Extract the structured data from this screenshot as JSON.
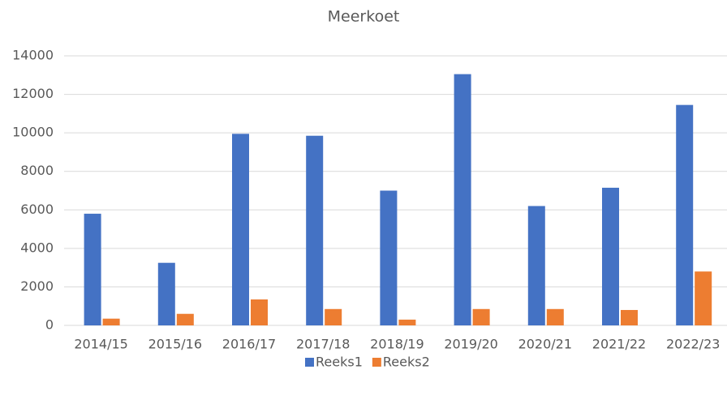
{
  "chart_data": {
    "type": "bar",
    "title": "Meerkoet",
    "categories": [
      "2014/15",
      "2015/16",
      "2016/17",
      "2017/18",
      "2018/19",
      "2019/20",
      "2020/21",
      "2021/22",
      "2022/23"
    ],
    "series": [
      {
        "name": "Reeks1",
        "color": "#4472c4",
        "values": [
          5800,
          3250,
          9950,
          9850,
          7000,
          13050,
          6200,
          7150,
          11450
        ]
      },
      {
        "name": "Reeks2",
        "color": "#ed7d31",
        "values": [
          350,
          600,
          1350,
          850,
          300,
          850,
          850,
          800,
          2800
        ]
      }
    ],
    "ylim": [
      0,
      14000
    ],
    "yticks": [
      0,
      2000,
      4000,
      6000,
      8000,
      10000,
      12000,
      14000
    ],
    "grid": true,
    "legend": "bottom"
  }
}
